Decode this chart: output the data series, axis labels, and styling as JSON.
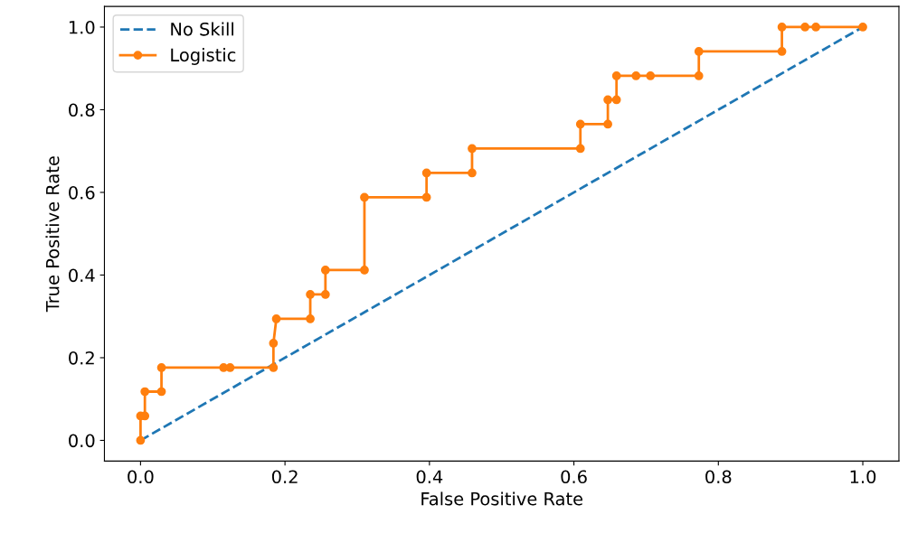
{
  "chart_data": {
    "type": "line",
    "xlabel": "False Positive Rate",
    "ylabel": "True Positive Rate",
    "xlim": [
      -0.05,
      1.05
    ],
    "ylim": [
      -0.05,
      1.05
    ],
    "xticks": [
      {
        "value": 0,
        "label": "0.0"
      },
      0.2,
      0.4,
      0.6,
      0.8,
      {
        "value": 1,
        "label": "1.0"
      }
    ],
    "yticks": [
      {
        "value": 0,
        "label": "0.0"
      },
      0.2,
      0.4,
      0.6,
      0.8,
      {
        "value": 1,
        "label": "1.0"
      }
    ],
    "grid": false,
    "legend": "top left",
    "series": [
      {
        "name": "No Skill",
        "color": "#1f77b4",
        "line_style": "dashed",
        "marker": "none",
        "x": [
          0,
          1
        ],
        "values": [
          0,
          1
        ]
      },
      {
        "name": "Logistic",
        "color": "#ff7f0e",
        "line_style": "solid",
        "marker": "circle",
        "x": [
          0,
          0,
          0.006,
          0.006,
          0.029,
          0.029,
          0.115,
          0.124,
          0.184,
          0.184,
          0.188,
          0.235,
          0.235,
          0.256,
          0.256,
          0.31,
          0.31,
          0.396,
          0.396,
          0.459,
          0.459,
          0.609,
          0.609,
          0.647,
          0.647,
          0.659,
          0.659,
          0.686,
          0.706,
          0.773,
          0.773,
          0.888,
          0.888,
          0.92,
          0.935,
          1
        ],
        "values": [
          0,
          0.059,
          0.059,
          0.118,
          0.118,
          0.176,
          0.176,
          0.176,
          0.176,
          0.235,
          0.294,
          0.294,
          0.353,
          0.353,
          0.412,
          0.412,
          0.588,
          0.588,
          0.647,
          0.647,
          0.706,
          0.706,
          0.765,
          0.765,
          0.824,
          0.824,
          0.882,
          0.882,
          0.882,
          0.882,
          0.941,
          0.941,
          1,
          1,
          1,
          1
        ]
      }
    ]
  }
}
